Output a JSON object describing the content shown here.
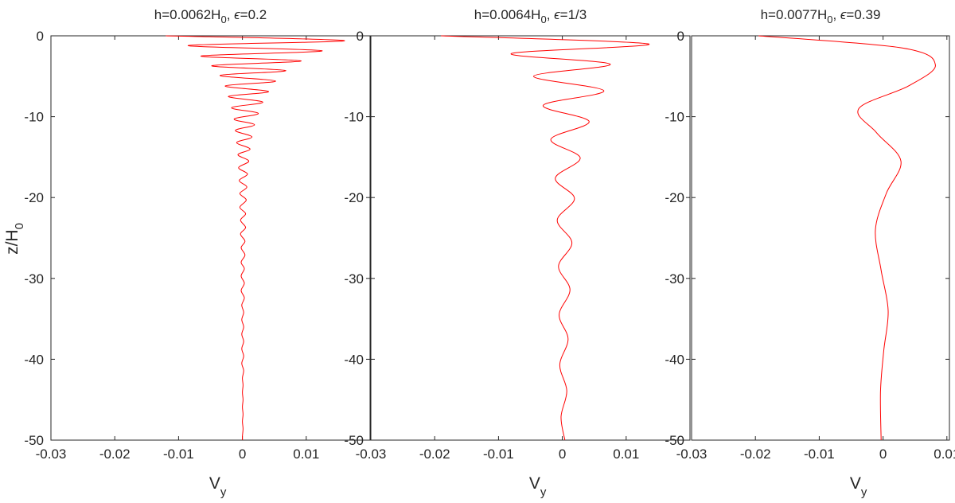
{
  "figure": {
    "ylabel": "z/H",
    "ylabel_sub": "0",
    "xlabel": "V",
    "xlabel_sub": "y",
    "line_color": "#ff0000",
    "axis_color": "#262626"
  },
  "chart_data": [
    {
      "type": "line",
      "title_parts": [
        "h=0.0062H",
        "0",
        ", ",
        "ϵ",
        "=0.2"
      ],
      "xlabel": "V_y",
      "ylabel": "z/H_0",
      "xlim": [
        -0.03,
        0.02
      ],
      "ylim": [
        -50,
        0
      ],
      "xticks": [
        -0.03,
        -0.02,
        -0.01,
        0,
        0.01
      ],
      "xtick_labels": [
        "-0.03",
        "-0.02",
        "-0.01",
        "0",
        "0.01"
      ],
      "yticks": [
        0,
        -10,
        -20,
        -30,
        -40,
        -50
      ],
      "ytick_labels": [
        "0",
        "-10",
        "-20",
        "-30",
        "-40",
        "-50"
      ],
      "grid": false,
      "series": [
        {
          "color": "#ff0000",
          "z": [
            0,
            -0.6,
            -1.2,
            -1.85,
            -2.5,
            -3.1,
            -3.7,
            -4.3,
            -4.9,
            -5.6,
            -6.2,
            -6.9,
            -7.5,
            -8.2,
            -8.9,
            -9.6,
            -10.3,
            -11.0,
            -11.7,
            -12.5,
            -13.2,
            -14.0,
            -14.7,
            -15.5,
            -16.3,
            -17.1,
            -17.9,
            -18.7,
            -19.5,
            -20.3,
            -21.2,
            -22.0,
            -22.8,
            -23.7,
            -24.5,
            -25.4,
            -26.2,
            -27.1,
            -28.0,
            -28.8,
            -29.7,
            -30.6,
            -31.5,
            -32.4,
            -33.3,
            -34.2,
            -35.1,
            -36.0,
            -36.9,
            -37.8,
            -38.7,
            -39.6,
            -40.5,
            -41.4,
            -42.3,
            -43.2,
            -44.1,
            -45.0,
            -45.9,
            -46.8,
            -47.7,
            -48.6,
            -49.5,
            -50
          ],
          "vy": [
            -0.012,
            0.016,
            -0.0085,
            0.0125,
            -0.0065,
            0.0092,
            -0.0048,
            0.0068,
            -0.0035,
            0.0052,
            -0.0027,
            0.0041,
            -0.0022,
            0.0032,
            -0.0017,
            0.0025,
            -0.0013,
            0.0019,
            -0.0011,
            0.0015,
            -0.0009,
            0.0012,
            -0.0007,
            0.001,
            -0.0006,
            0.0008,
            -0.0005,
            0.0007,
            -0.0004,
            0.0006,
            -0.0004,
            0.0005,
            -0.0003,
            0.0005,
            -0.0003,
            0.0004,
            -0.0002,
            0.0004,
            -0.0002,
            0.0003,
            -0.0002,
            0.0003,
            -0.0002,
            0.0003,
            -0.0001,
            0.0002,
            -0.0001,
            0.0002,
            -0.0001,
            0.0002,
            -0.0001,
            0.0002,
            -0.0001,
            0.0002,
            0.0,
            0.0001,
            0.0,
            0.0001,
            0.0,
            0.0001,
            0.0,
            0.0001,
            0.0,
            0.0
          ]
        }
      ]
    },
    {
      "type": "line",
      "title_parts": [
        "h=0.0064H",
        "0",
        ", ",
        "ϵ",
        "=1/3"
      ],
      "xlabel": "V_y",
      "ylabel": "z/H_0",
      "xlim": [
        -0.03,
        0.02
      ],
      "ylim": [
        -50,
        0
      ],
      "xticks": [
        -0.03,
        -0.02,
        -0.01,
        0,
        0.01
      ],
      "xtick_labels": [
        "-0.03",
        "-0.02",
        "-0.01",
        "0",
        "0.01"
      ],
      "yticks": [
        0,
        -10,
        -20,
        -30,
        -40,
        -50
      ],
      "ytick_labels": [
        "0",
        "-10",
        "-20",
        "-30",
        "-40",
        "-50"
      ],
      "grid": false,
      "series": [
        {
          "color": "#ff0000",
          "z": [
            0,
            -1.0,
            -2.2,
            -3.5,
            -5.0,
            -6.8,
            -8.6,
            -10.6,
            -12.8,
            -15.1,
            -17.6,
            -20.1,
            -22.8,
            -25.6,
            -28.5,
            -31.4,
            -34.5,
            -37.5,
            -40.7,
            -43.9,
            -47.1,
            -50
          ],
          "vy": [
            -0.019,
            0.0135,
            -0.008,
            0.0075,
            -0.0045,
            0.0065,
            -0.003,
            0.0042,
            -0.0018,
            0.0028,
            -0.0011,
            0.0019,
            -0.0008,
            0.0015,
            -0.0006,
            0.0012,
            -0.0005,
            0.0009,
            -0.0004,
            0.0007,
            -0.0002,
            0.0004
          ]
        }
      ]
    },
    {
      "type": "line",
      "title_parts": [
        "h=0.0077H",
        "0",
        ", ",
        "ϵ",
        "=0.39"
      ],
      "xlabel": "V_y",
      "ylabel": "z/H_0",
      "xlim": [
        -0.03,
        0.02
      ],
      "ylim": [
        -50,
        0
      ],
      "xticks": [
        -0.03,
        -0.02,
        -0.01,
        0,
        0.01
      ],
      "xtick_labels": [
        "-0.03",
        "-0.02",
        "-0.01",
        "0",
        "0.01"
      ],
      "yticks": [
        0,
        -10,
        -20,
        -30,
        -40,
        -50
      ],
      "ytick_labels": [
        "0",
        "-10",
        "-20",
        "-30",
        "-40",
        "-50"
      ],
      "grid": false,
      "series": [
        {
          "color": "#ff0000",
          "z": [
            0,
            -1.5,
            -3.6,
            -6.2,
            -9.0,
            -12.0,
            -15.5,
            -19.5,
            -24.0,
            -29.0,
            -34.0,
            -39.0,
            -44.0,
            -50
          ],
          "vy": [
            -0.0195,
            0.003,
            0.0082,
            0.004,
            -0.0038,
            -0.001,
            0.0028,
            0.0005,
            -0.0012,
            -0.0003,
            0.0008,
            0.0001,
            -0.0004,
            -0.0003
          ]
        }
      ]
    }
  ]
}
